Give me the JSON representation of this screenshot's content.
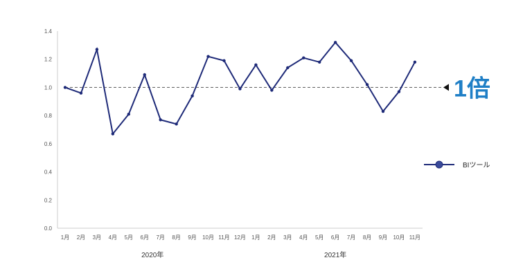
{
  "chart_data": {
    "type": "line",
    "x": [
      "1月",
      "2月",
      "3月",
      "4月",
      "5月",
      "6月",
      "7月",
      "8月",
      "9月",
      "10月",
      "11月",
      "12月",
      "1月",
      "2月",
      "3月",
      "4月",
      "5月",
      "6月",
      "7月",
      "8月",
      "9月",
      "10月",
      "11月"
    ],
    "year_groups": [
      {
        "label": "2020年",
        "start": 0,
        "end": 11
      },
      {
        "label": "2021年",
        "start": 12,
        "end": 22
      }
    ],
    "series": [
      {
        "name": "BIツール",
        "color": "#1e2a78",
        "values": [
          1.0,
          0.96,
          1.27,
          0.67,
          0.81,
          1.09,
          0.77,
          0.74,
          0.94,
          1.22,
          1.19,
          0.99,
          1.16,
          0.98,
          1.14,
          1.21,
          1.18,
          1.32,
          1.19,
          1.02,
          0.83,
          0.97,
          1.18
        ]
      }
    ],
    "ylim": [
      0,
      1.4
    ],
    "yticks": [
      "0.0",
      "0.2",
      "0.4",
      "0.6",
      "0.8",
      "1.0",
      "1.2",
      "1.4"
    ],
    "reference_line": {
      "value": 1.0,
      "label": "1倍",
      "style": "dashed",
      "label_color": "#1f7fc6"
    },
    "legend_position": "right",
    "grid": false
  }
}
